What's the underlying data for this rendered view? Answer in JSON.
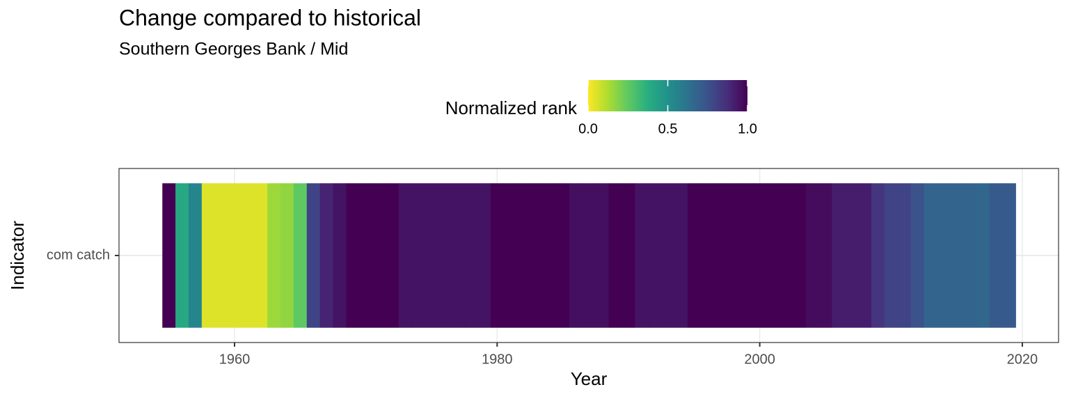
{
  "chart_data": {
    "type": "heatmap",
    "title": "Change compared to historical",
    "subtitle": "Southern Georges Bank / Mid",
    "xlabel": "Year",
    "ylabel": "Indicator",
    "x": [
      1955,
      1956,
      1957,
      1958,
      1959,
      1960,
      1961,
      1962,
      1963,
      1964,
      1965,
      1966,
      1967,
      1968,
      1969,
      1970,
      1971,
      1972,
      1973,
      1974,
      1975,
      1976,
      1977,
      1978,
      1979,
      1980,
      1981,
      1982,
      1983,
      1984,
      1985,
      1986,
      1987,
      1988,
      1989,
      1990,
      1991,
      1992,
      1993,
      1994,
      1995,
      1996,
      1997,
      1998,
      1999,
      2000,
      2001,
      2002,
      2003,
      2004,
      2005,
      2006,
      2007,
      2008,
      2009,
      2010,
      2011,
      2012,
      2013,
      2014,
      2015,
      2016,
      2017,
      2018,
      2019
    ],
    "categories": [
      "com catch"
    ],
    "values": [
      [
        1.0,
        0.4,
        0.55,
        0.05,
        0.05,
        0.05,
        0.05,
        0.05,
        0.15,
        0.17,
        0.25,
        0.8,
        0.9,
        0.95,
        1.0,
        1.0,
        1.0,
        1.0,
        0.95,
        0.95,
        0.95,
        0.95,
        0.95,
        0.95,
        0.95,
        1.0,
        1.0,
        1.0,
        1.0,
        1.0,
        1.0,
        0.96,
        0.96,
        0.96,
        1.0,
        1.0,
        0.95,
        0.95,
        0.95,
        0.95,
        1.0,
        1.0,
        1.0,
        1.0,
        1.0,
        1.0,
        1.0,
        1.0,
        1.0,
        0.97,
        0.97,
        0.92,
        0.92,
        0.92,
        0.85,
        0.8,
        0.8,
        0.75,
        0.68,
        0.68,
        0.68,
        0.68,
        0.67,
        0.72,
        0.72
      ]
    ],
    "xlim": [
      1951.2,
      2022.76
    ],
    "xticks": [
      1960,
      1980,
      2000,
      2020
    ],
    "grid": true,
    "legend": {
      "title": "Normalized rank",
      "position": "top",
      "clim": [
        0,
        1
      ],
      "ticks": [
        {
          "value": 0,
          "label": "0.0"
        },
        {
          "value": 0.5,
          "label": "0.5"
        },
        {
          "value": 1,
          "label": "1.0"
        }
      ]
    },
    "colorscale": [
      "#fde725",
      "#addc30",
      "#5ec962",
      "#28ae80",
      "#21918c",
      "#2c728e",
      "#3b528b",
      "#472d7b",
      "#440154"
    ]
  }
}
